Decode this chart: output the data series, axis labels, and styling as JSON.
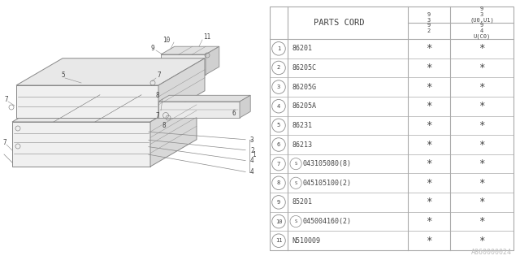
{
  "bg_color": "#ffffff",
  "table_header": "PARTS CORD",
  "col_narrow_header": "9\n3\n9\n2",
  "col_wide_header_top": "9\n3\n(U0,U1)",
  "col_wide_header_bot": "9\n4\nU(C0)",
  "parts": [
    {
      "num": "1",
      "code": "86201",
      "screw": false
    },
    {
      "num": "2",
      "code": "86205C",
      "screw": false
    },
    {
      "num": "3",
      "code": "86205G",
      "screw": false
    },
    {
      "num": "4",
      "code": "86205A",
      "screw": false
    },
    {
      "num": "5",
      "code": "86231",
      "screw": false
    },
    {
      "num": "6",
      "code": "86213",
      "screw": false
    },
    {
      "num": "7",
      "code": "043105080(8)",
      "screw": true
    },
    {
      "num": "8",
      "code": "045105100(2)",
      "screw": true
    },
    {
      "num": "9",
      "code": "85201",
      "screw": false
    },
    {
      "num": "10",
      "code": "045004160(2)",
      "screw": true
    },
    {
      "num": "11",
      "code": "N510009",
      "screw": false
    }
  ],
  "watermark": "A860000024",
  "line_color": "#aaaaaa",
  "text_color": "#444444",
  "diagram_color": "#888888"
}
